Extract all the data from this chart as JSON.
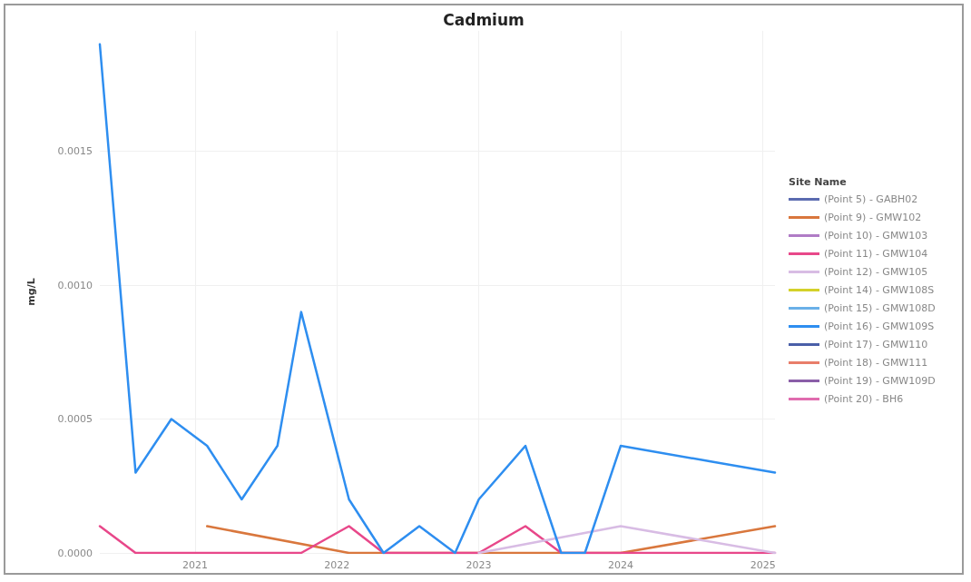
{
  "chart_data": {
    "type": "line",
    "title": "Cadmium",
    "ylabel": "mg/L",
    "legend_title": "Site Name",
    "legend": "right",
    "grid": true,
    "marker": "none",
    "xlim": [
      "2020-05",
      "2025-02"
    ],
    "xticks": [
      "2021",
      "2022",
      "2023",
      "2024",
      "2025"
    ],
    "ylim": [
      0,
      0.00195
    ],
    "yticks": [
      {
        "value": 0,
        "label": "0.0000"
      },
      {
        "value": 0.0005,
        "label": "0.0005"
      },
      {
        "value": 0.001,
        "label": "0.0010"
      },
      {
        "value": 0.0015,
        "label": "0.0015"
      }
    ],
    "series": [
      {
        "name": "(Point 5) - GABH02",
        "color": "#5b6bb0"
      },
      {
        "name": "(Point 9) - GMW102",
        "color": "#d9773d",
        "x": [
          "2021-02",
          "2022-02",
          "2023-01",
          "2024-01",
          "2025-02"
        ],
        "values": [
          0.0001,
          0,
          0,
          0,
          0.0001
        ]
      },
      {
        "name": "(Point 10) - GMW103",
        "color": "#b07cc6"
      },
      {
        "name": "(Point 11) - GMW104",
        "color": "#e8488a",
        "x": [
          "2020-05",
          "2020-08",
          "2020-11",
          "2021-02",
          "2021-05",
          "2021-08",
          "2021-10",
          "2022-02",
          "2022-05",
          "2022-08",
          "2022-11",
          "2023-01",
          "2023-05",
          "2023-08",
          "2023-10",
          "2024-01",
          "2025-02"
        ],
        "values": [
          0.0001,
          0,
          0,
          0,
          0,
          0,
          0,
          0.0001,
          0,
          0,
          0,
          0,
          0.0001,
          0,
          0,
          0,
          0
        ]
      },
      {
        "name": "(Point 12) - GMW105",
        "color": "#d8bce4",
        "x": [
          "2023-01",
          "2024-01",
          "2025-02"
        ],
        "values": [
          0,
          0.0001,
          0
        ]
      },
      {
        "name": "(Point 14) - GMW108S",
        "color": "#d4d12a"
      },
      {
        "name": "(Point 15) - GMW108D",
        "color": "#6ab0e8"
      },
      {
        "name": "(Point 16) - GMW109S",
        "color": "#2e8ef0",
        "x": [
          "2020-05",
          "2020-08",
          "2020-11",
          "2021-02",
          "2021-05",
          "2021-08",
          "2021-10",
          "2022-02",
          "2022-05",
          "2022-08",
          "2022-11",
          "2023-01",
          "2023-05",
          "2023-08",
          "2023-10",
          "2024-01",
          "2025-02"
        ],
        "values": [
          0.0019,
          0.0003,
          0.0005,
          0.0004,
          0.0002,
          0.0004,
          0.0009,
          0.0002,
          0,
          0.0001,
          0,
          0.0002,
          0.0004,
          0,
          0,
          0.0004,
          0.0003
        ]
      },
      {
        "name": "(Point 17) - GMW110",
        "color": "#4a5fa8"
      },
      {
        "name": "(Point 18) - GMW111",
        "color": "#e87e6a"
      },
      {
        "name": "(Point 19) - GMW109D",
        "color": "#8a5ea8"
      },
      {
        "name": "(Point 20) - BH6",
        "color": "#e06cae"
      }
    ]
  }
}
